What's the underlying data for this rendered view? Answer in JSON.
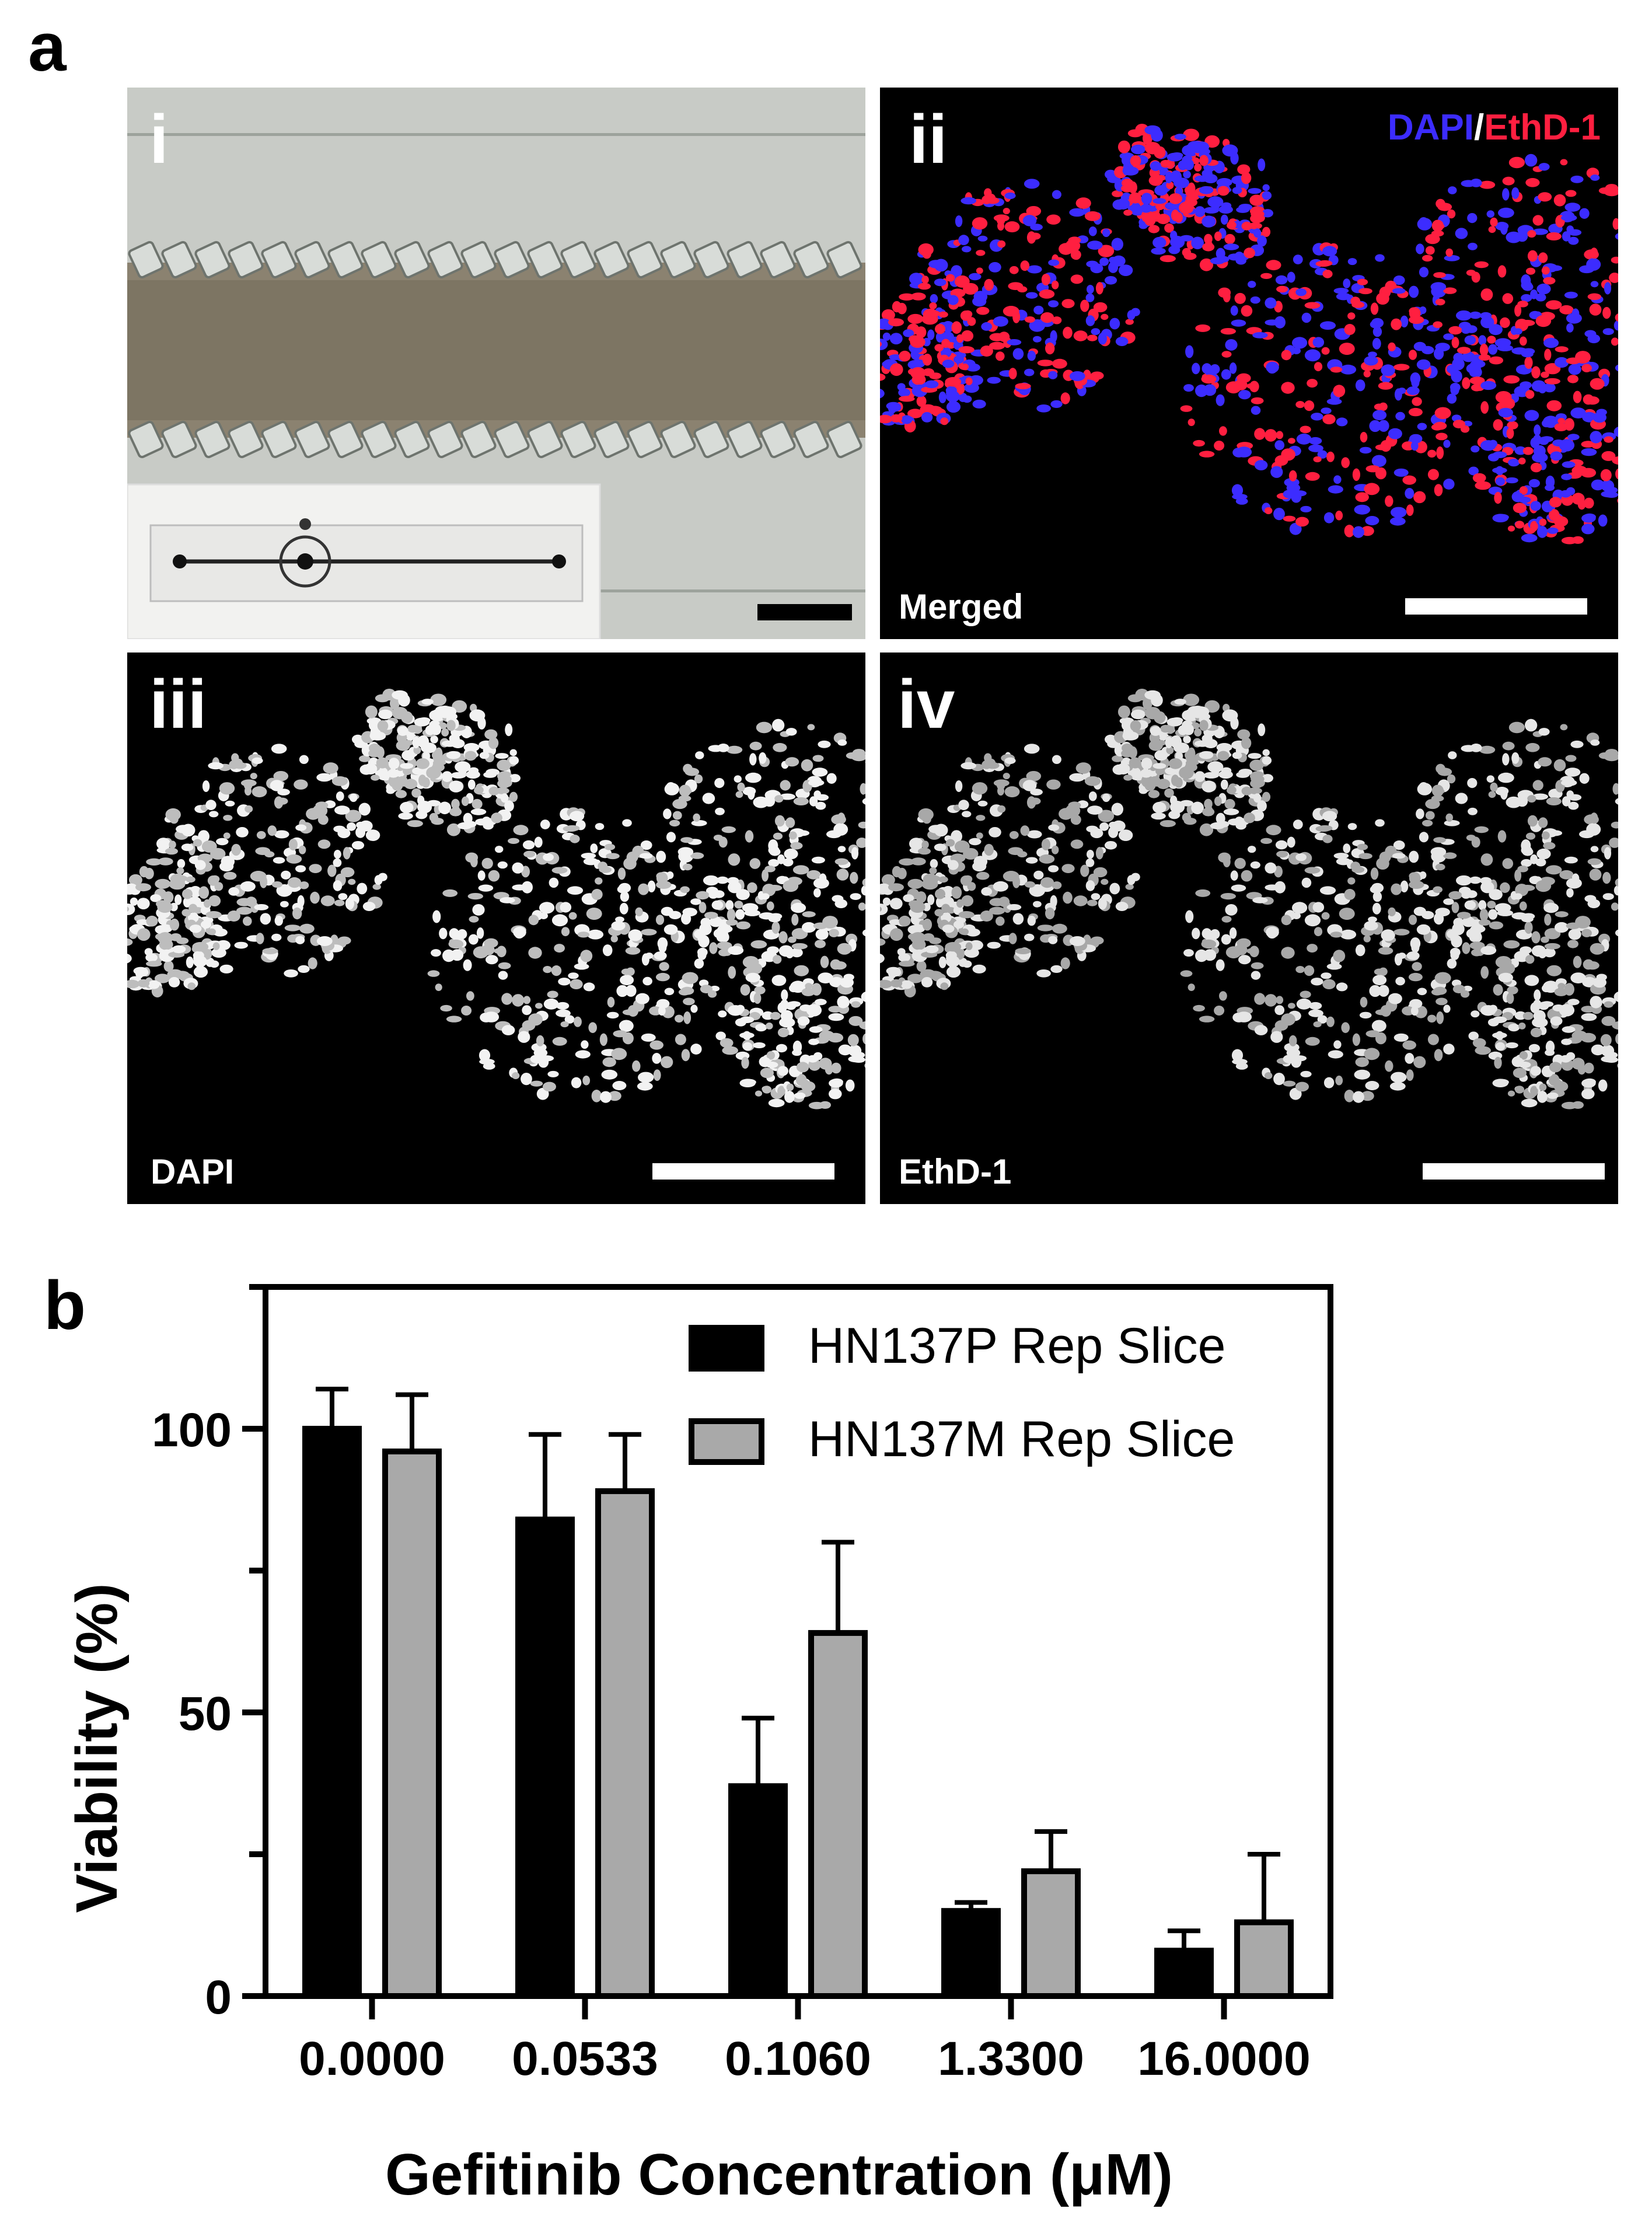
{
  "panel_a": {
    "letter": "a",
    "panels": [
      {
        "numeral": "i",
        "caption": ""
      },
      {
        "numeral": "ii",
        "caption": "Merged",
        "legend": {
          "dapi": "DAPI",
          "sep": "/",
          "ethd": "EthD-1"
        }
      },
      {
        "numeral": "iii",
        "caption": "DAPI"
      },
      {
        "numeral": "iv",
        "caption": "EthD-1"
      }
    ],
    "colors": {
      "dapi": "#3c2cff",
      "ethd": "#ff1f40",
      "white": "#ffffff"
    }
  },
  "panel_b": {
    "letter": "b",
    "chart_data": {
      "type": "bar",
      "title": "",
      "xlabel": "Gefitinib Concentration (μM)",
      "ylabel": "Viability (%)",
      "categories": [
        "0.0000",
        "0.0533",
        "0.1060",
        "1.3300",
        "16.0000"
      ],
      "ylim": [
        0,
        125
      ],
      "yticks": [
        "0",
        "50",
        "100"
      ],
      "ytick_values": [
        0,
        50,
        100
      ],
      "series": [
        {
          "name": "HN137P Rep Slice",
          "color": "#000000",
          "values": [
            100,
            84,
            37,
            15,
            8
          ],
          "errors": [
            7,
            15,
            12,
            1.5,
            3.5
          ]
        },
        {
          "name": "HN137M Rep Slice",
          "color": "#a9a9a9",
          "values": [
            96,
            89,
            64,
            22,
            13
          ],
          "errors": [
            10,
            10,
            16,
            7,
            12
          ]
        }
      ],
      "legend_position": "top-right",
      "grid": false
    }
  }
}
